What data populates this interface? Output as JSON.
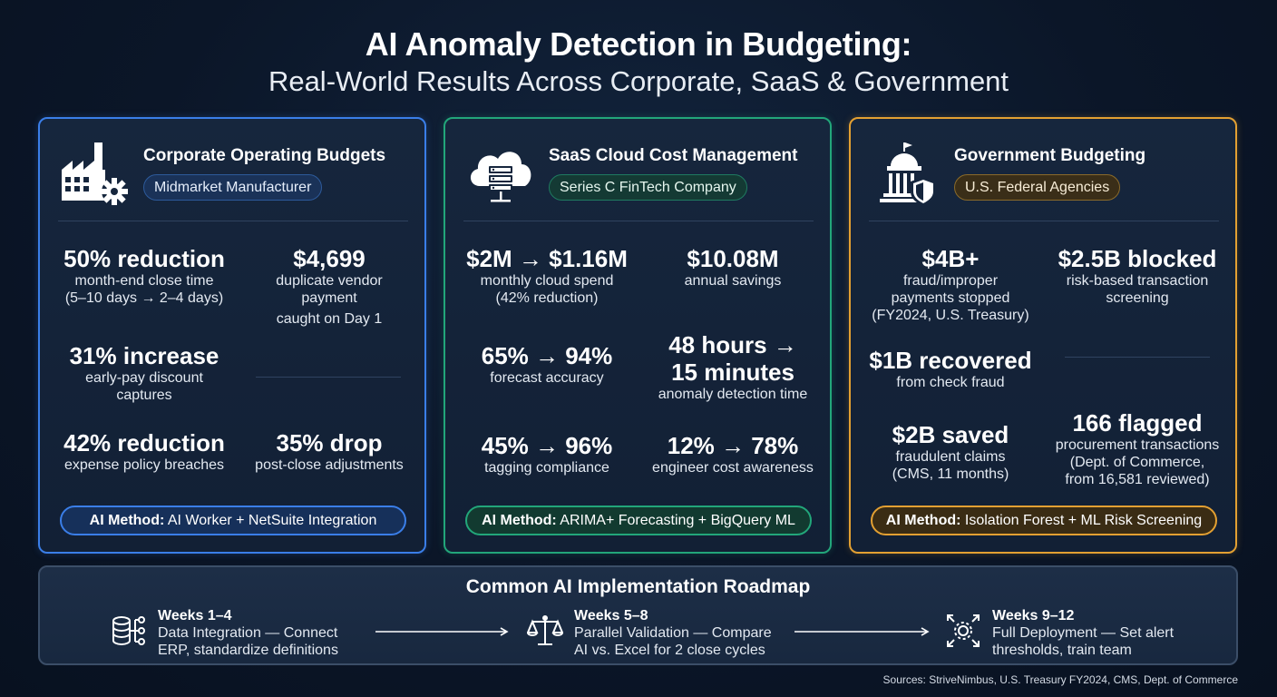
{
  "title": "AI Anomaly Detection in Budgeting:",
  "subtitle": "Real-World Results Across Corporate, SaaS & Government",
  "cards": [
    {
      "title": "Corporate Operating Budgets",
      "tag": "Midmarket Manufacturer",
      "icon": "factory-gear-icon",
      "accent": "#3a7ee8",
      "metrics": [
        {
          "value": "50% reduction",
          "lines": [
            "month-end close time",
            "(5–10 days → 2–4 days)"
          ]
        },
        {
          "value": "$4,699",
          "lines": [
            "duplicate vendor",
            "payment",
            "caught on Day 1"
          ]
        },
        {
          "value": "31% increase",
          "lines": [
            "early-pay discount",
            "captures"
          ]
        },
        {
          "value": "42% reduction",
          "lines": [
            "expense policy breaches"
          ]
        },
        {
          "value": "35% drop",
          "lines": [
            "post-close adjustments"
          ]
        }
      ],
      "method_label": "AI Method:",
      "method": "AI Worker + NetSuite Integration"
    },
    {
      "title": "SaaS Cloud Cost Management",
      "tag": "Series C FinTech Company",
      "icon": "cloud-server-icon",
      "accent": "#22a67a",
      "metrics": [
        {
          "value": "$2M → $1.16M",
          "lines": [
            "monthly cloud spend",
            "(42% reduction)"
          ]
        },
        {
          "value": "$10.08M",
          "lines": [
            "annual savings"
          ]
        },
        {
          "value": "65% → 94%",
          "lines": [
            "forecast accuracy"
          ]
        },
        {
          "value": "48 hours →",
          "value2": "15 minutes",
          "lines": [
            "anomaly detection time"
          ]
        },
        {
          "value": "45% → 96%",
          "lines": [
            "tagging compliance"
          ]
        },
        {
          "value": "12% → 78%",
          "lines": [
            "engineer cost awareness"
          ]
        }
      ],
      "method_label": "AI Method:",
      "method": "ARIMA+ Forecasting + BigQuery ML"
    },
    {
      "title": "Government Budgeting",
      "tag": "U.S. Federal Agencies",
      "icon": "capitol-shield-icon",
      "accent": "#e3a032",
      "metrics": [
        {
          "value": "$4B+",
          "lines": [
            "fraud/improper",
            "payments stopped",
            "(FY2024, U.S. Treasury)"
          ]
        },
        {
          "value": "$2.5B blocked",
          "lines": [
            "risk-based transaction",
            "screening"
          ]
        },
        {
          "value": "$1B recovered",
          "lines": [
            "from check fraud"
          ]
        },
        {
          "value": "$2B saved",
          "lines": [
            "fraudulent claims",
            "(CMS, 11 months)"
          ]
        },
        {
          "value": "166 flagged",
          "lines": [
            "procurement transactions",
            "(Dept. of Commerce,",
            "from 16,581 reviewed)"
          ]
        }
      ],
      "method_label": "AI Method:",
      "method": "Isolation Forest + ML Risk Screening"
    }
  ],
  "roadmap": {
    "title": "Common AI Implementation Roadmap",
    "steps": [
      {
        "weeks": "Weeks 1–4",
        "line1": "Data Integration — Connect",
        "line2": "ERP, standardize definitions",
        "icon": "database-network-icon"
      },
      {
        "weeks": "Weeks 5–8",
        "line1": "Parallel Validation — Compare",
        "line2": "AI vs. Excel for 2 close cycles",
        "icon": "scale-balance-icon"
      },
      {
        "weeks": "Weeks 9–12",
        "line1": "Full Deployment — Set alert",
        "line2": "thresholds, train team",
        "icon": "expand-gear-icon"
      }
    ]
  },
  "sources": "Sources: StriveNimbus, U.S. Treasury FY2024, CMS, Dept. of Commerce"
}
